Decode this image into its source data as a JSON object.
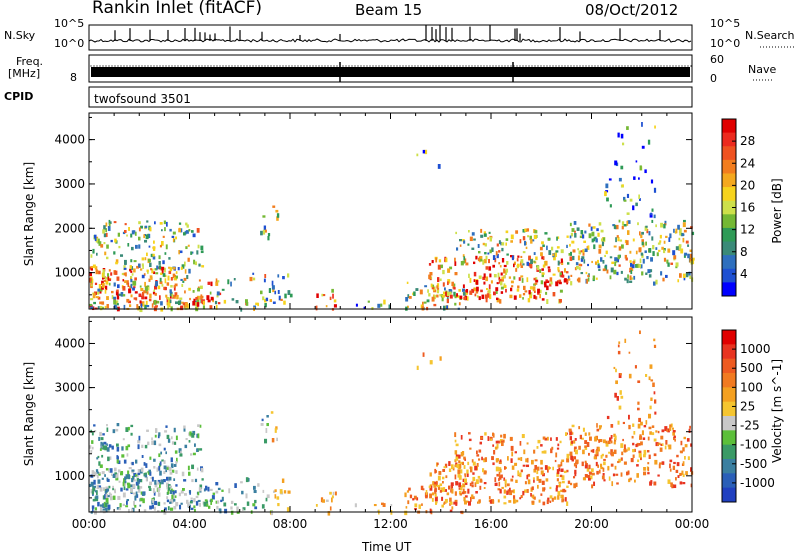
{
  "header": {
    "station": "Rankin Inlet (fitACF)",
    "beam": "Beam 15",
    "date": "08/Oct/2012"
  },
  "strips": {
    "nsky_label": "N.Sky",
    "nsky_hi": "10^5",
    "nsky_lo": "10^0",
    "nsearch_label": "N.Search",
    "nsearch_hi": "10^5",
    "nsearch_lo": "10^0",
    "freq_label_line1": "Freq.",
    "freq_label_line2": "[MHz]",
    "freq_tick": "8",
    "nave_label": "Nave",
    "nave_hi": "60",
    "nave_lo": "0",
    "cpid_label": "CPID",
    "cpid_value": "twofsound 3501"
  },
  "colors": {
    "nsearch_dots": "#000000",
    "nave_dots": "#000000"
  },
  "chart_data": [
    {
      "type": "heatmap",
      "panel": "power",
      "ylabel": "Slant Range [km]",
      "yticks": [
        "1000",
        "2000",
        "3000",
        "4000"
      ],
      "ylim": [
        180,
        4600
      ],
      "xlim": [
        "00:00",
        "24:00"
      ],
      "colorbar": {
        "label": "Power [dB]",
        "ticks": [
          "4",
          "8",
          "12",
          "16",
          "20",
          "24",
          "28"
        ],
        "colors": [
          "#0000ff",
          "#1e50d2",
          "#2e6fbe",
          "#3a8a78",
          "#2e9a56",
          "#74b834",
          "#cde04a",
          "#f6d31c",
          "#f4a81e",
          "#f27d1e",
          "#ef5220",
          "#ec2a1e",
          "#e00000"
        ]
      }
    },
    {
      "type": "heatmap",
      "panel": "velocity",
      "ylabel": "Slant Range [km]",
      "yticks": [
        "1000",
        "2000",
        "3000",
        "4000"
      ],
      "ylim": [
        180,
        4600
      ],
      "xlim": [
        "00:00",
        "24:00"
      ],
      "xlabel": "Time UT",
      "xticks": [
        "00:00",
        "04:00",
        "08:00",
        "12:00",
        "16:00",
        "20:00",
        "00:00"
      ],
      "colorbar": {
        "label": "Velocity [m s^-1]",
        "ticks": [
          "1000",
          "500",
          "100",
          "25",
          "-25",
          "-100",
          "-500",
          "-1000"
        ],
        "colors": [
          "#2040c0",
          "#2a5fb8",
          "#3a7fa0",
          "#3a9a66",
          "#5cbf3a",
          "#c8c8c8",
          "#f5c530",
          "#f4a020",
          "#f17a20",
          "#ee5a20",
          "#e83420",
          "#e00000"
        ]
      }
    }
  ]
}
